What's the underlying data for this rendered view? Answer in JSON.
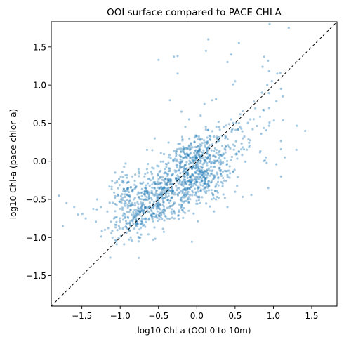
{
  "chart_data": {
    "type": "scatter",
    "title": "OOI surface compared to PACE CHLA",
    "xlabel": "log10 Chl-a (OOI 0 to 10m)",
    "ylabel": "log10 Chl-a (pace chlor_a)",
    "xlim": [
      -1.9,
      1.83
    ],
    "ylim": [
      -1.9,
      1.83
    ],
    "xticks": [
      -1.5,
      -1.0,
      -0.5,
      0.0,
      0.5,
      1.0,
      1.5
    ],
    "yticks": [
      -1.5,
      -1.0,
      -0.5,
      0.0,
      0.5,
      1.0,
      1.5
    ],
    "xtick_labels": [
      "−1.5",
      "−1.0",
      "−0.5",
      "0.0",
      "0.5",
      "1.0",
      "1.5"
    ],
    "ytick_labels": [
      "−1.5",
      "−1.0",
      "−0.5",
      "0.0",
      "0.5",
      "1.0",
      "1.5"
    ],
    "grid": false,
    "reference_line": {
      "style": "dashed",
      "color": "#000000",
      "relation": "y = x"
    },
    "marker_color": "#1f77b4",
    "marker_alpha": 0.4,
    "point_count": 1300,
    "clusters": [
      {
        "cx": -0.45,
        "cy": -0.45,
        "sx": 0.3,
        "sy": 0.2,
        "n": 520
      },
      {
        "cx": 0.05,
        "cy": -0.2,
        "sx": 0.2,
        "sy": 0.2,
        "n": 330
      },
      {
        "cx": -0.05,
        "cy": 0.12,
        "sx": 0.2,
        "sy": 0.12,
        "n": 180
      },
      {
        "cx": -0.9,
        "cy": -0.45,
        "sx": 0.12,
        "sy": 0.18,
        "n": 110
      },
      {
        "cx": -0.75,
        "cy": -0.75,
        "sx": 0.12,
        "sy": 0.1,
        "n": 60
      },
      {
        "cx": 0.6,
        "cy": 0.25,
        "sx": 0.3,
        "sy": 0.3,
        "n": 100
      }
    ],
    "sparse_points": [
      [
        0.95,
        1.8
      ],
      [
        1.2,
        1.75
      ],
      [
        0.88,
        1.37
      ],
      [
        0.93,
        1.32
      ],
      [
        0.4,
        1.3
      ],
      [
        1.05,
        1.15
      ],
      [
        0.98,
        1.05
      ],
      [
        1.1,
        0.95
      ],
      [
        1.12,
        0.85
      ],
      [
        0.92,
        1.0
      ],
      [
        -0.5,
        1.33
      ],
      [
        -0.3,
        1.37
      ],
      [
        -0.25,
        1.38
      ],
      [
        0.15,
        1.6
      ],
      [
        0.55,
        1.55
      ],
      [
        0.45,
        1.4
      ],
      [
        0.12,
        1.45
      ],
      [
        -0.25,
        1.15
      ],
      [
        -0.2,
        0.65
      ],
      [
        -0.35,
        0.8
      ],
      [
        0.1,
        0.75
      ],
      [
        0.2,
        0.8
      ],
      [
        0.5,
        1.05
      ],
      [
        0.85,
        0.9
      ],
      [
        1.3,
        0.15
      ],
      [
        1.15,
        0.05
      ],
      [
        0.9,
        0.05
      ],
      [
        1.1,
        -0.2
      ],
      [
        -1.8,
        -0.45
      ],
      [
        -1.7,
        -0.55
      ],
      [
        -1.6,
        -0.6
      ],
      [
        -1.55,
        -0.7
      ],
      [
        -1.75,
        -0.85
      ],
      [
        -1.45,
        -0.75
      ],
      [
        -1.25,
        -0.6
      ],
      [
        -1.3,
        -0.5
      ],
      [
        -1.2,
        -0.9
      ],
      [
        -1.1,
        -1.0
      ],
      [
        0.4,
        -0.6
      ],
      [
        0.5,
        -0.4
      ],
      [
        0.25,
        -0.5
      ],
      [
        0.7,
        0.55
      ],
      [
        0.6,
        0.3
      ],
      [
        0.55,
        0.5
      ],
      [
        -0.15,
        0.45
      ],
      [
        -0.1,
        0.55
      ],
      [
        0.35,
        0.45
      ],
      [
        -0.55,
        0.3
      ],
      [
        -0.65,
        0.15
      ],
      [
        0.05,
        0.6
      ]
    ]
  }
}
